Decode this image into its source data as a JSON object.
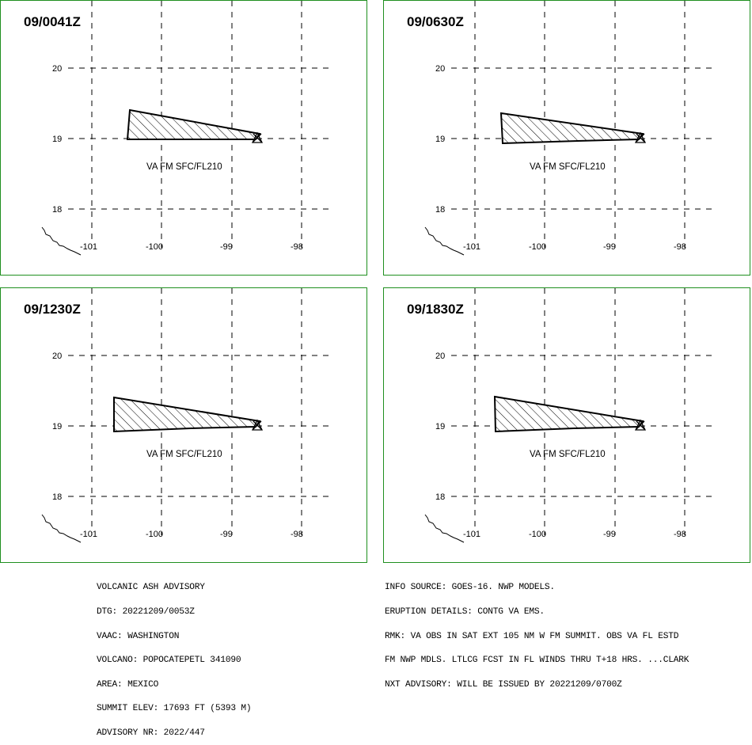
{
  "panels": [
    {
      "time": "09/0041Z",
      "label": "VA FM SFC/FL210"
    },
    {
      "time": "09/0630Z",
      "label": "VA FM SFC/FL210"
    },
    {
      "time": "09/1230Z",
      "label": "VA FM SFC/FL210"
    },
    {
      "time": "09/1830Z",
      "label": "VA FM SFC/FL210"
    }
  ],
  "map": {
    "lat_labels": [
      "20",
      "19",
      "18"
    ],
    "lon_labels": [
      "-101",
      "-100",
      "-99",
      "-98"
    ]
  },
  "advisory_left": [
    "VOLCANIC ASH ADVISORY",
    "DTG: 20221209/0053Z",
    "VAAC: WASHINGTON",
    "VOLCANO: POPOCATEPETL 341090",
    "AREA: MEXICO",
    "SUMMIT ELEV: 17693 FT (5393 M)",
    "ADVISORY NR: 2022/447"
  ],
  "advisory_right": [
    "INFO SOURCE: GOES-16. NWP MODELS.",
    "ERUPTION DETAILS: CONTG VA EMS.",
    "RMK: VA OBS IN SAT EXT 105 NM W FM SUMMIT. OBS VA FL ESTD",
    "FM NWP MDLS. LTLCG FCST IN FL WINDS THRU T+18 HRS. ...CLARK",
    "NXT ADVISORY: WILL BE ISSUED BY 20221209/0700Z"
  ],
  "colors": {
    "border": "#1f8f1f",
    "ash": "#000000"
  }
}
